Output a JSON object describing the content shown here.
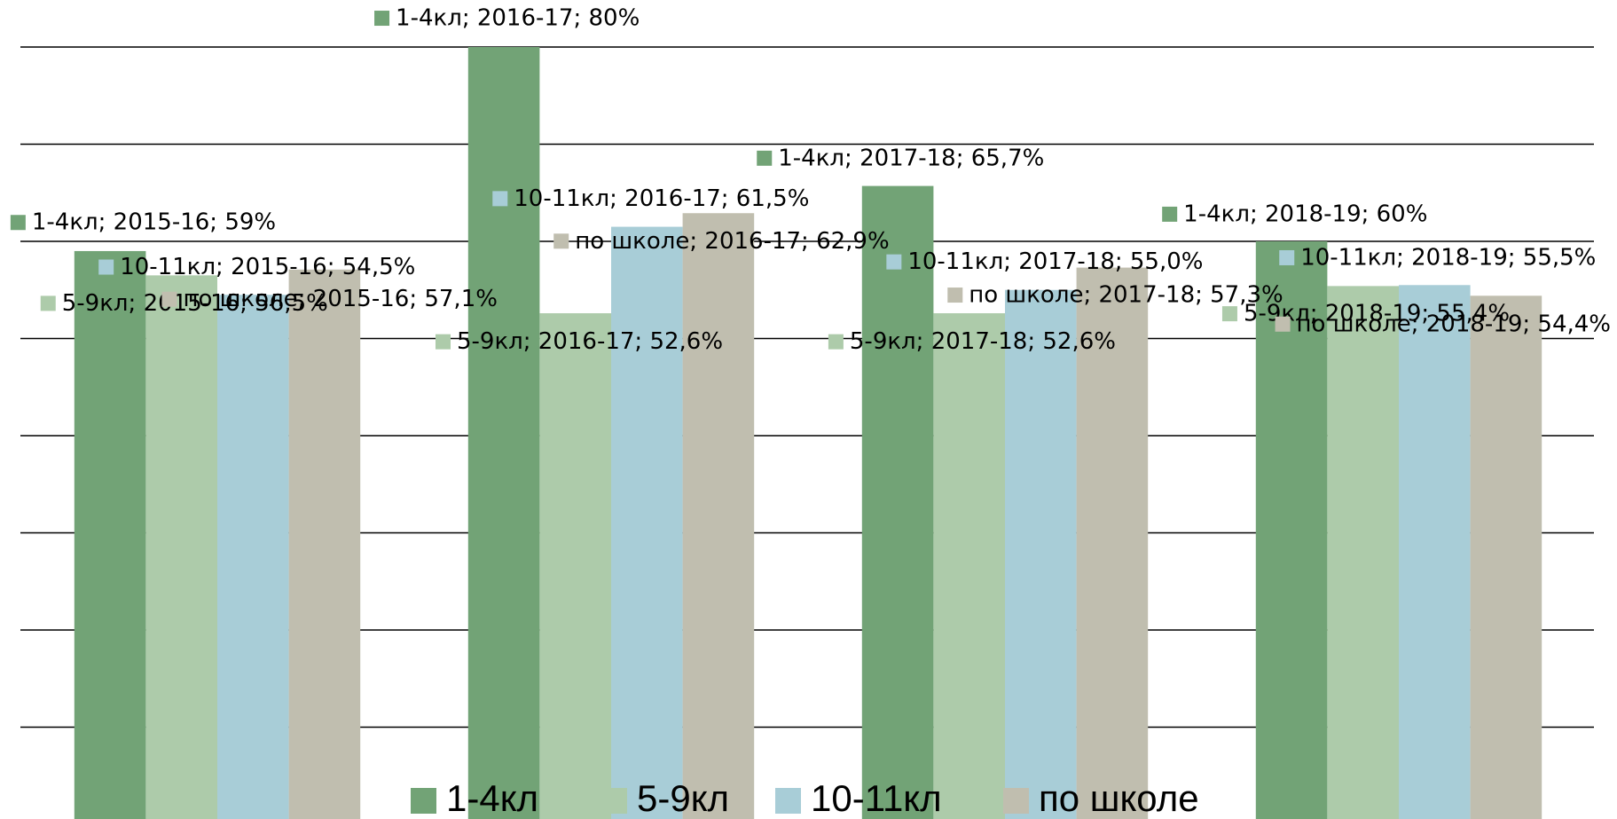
{
  "chart_data": {
    "type": "bar",
    "categories": [
      "2015-16",
      "2016-17",
      "2017-18",
      "2018-19"
    ],
    "series": [
      {
        "name": "1-4кл",
        "color": "#72a376",
        "values": [
          59,
          80,
          65.7,
          60
        ],
        "value_labels": [
          "1-4кл; 2015-16; 59%",
          "1-4кл; 2016-17; 80%",
          "1-4кл; 2017-18; 65,7%",
          "1-4кл; 2018-19; 60%"
        ]
      },
      {
        "name": "5-9кл",
        "color": "#adcbaa",
        "values": [
          56.5,
          52.6,
          52.6,
          55.4
        ],
        "value_labels": [
          "5-9кл; 2015-16; 56,5%",
          "5-9кл; 2016-17; 52,6%",
          "5-9кл; 2017-18; 52,6%",
          "5-9кл; 2018-19; 55,4%"
        ]
      },
      {
        "name": "10-11кл",
        "color": "#a8cdd7",
        "values": [
          54.5,
          61.5,
          55.0,
          55.5
        ],
        "value_labels": [
          "10-11кл; 2015-16; 54,5%",
          "10-11кл; 2016-17; 61,5%",
          "10-11кл; 2017-18; 55,0%",
          "10-11кл; 2018-19; 55,5%"
        ]
      },
      {
        "name": "по школе",
        "color": "#c0beaf",
        "values": [
          57.1,
          62.9,
          57.3,
          54.4
        ],
        "value_labels": [
          "по школе; 2015-16; 57,1%",
          "по школе; 2016-17; 62,9%",
          "по школе; 2017-18; 57,3%",
          "по школе; 2018-19; 54,4%"
        ]
      }
    ],
    "ylim": [
      0,
      85
    ],
    "yticks": [
      10,
      20,
      30,
      40,
      50,
      60,
      70,
      80
    ],
    "grid": true,
    "legend": "bottom"
  }
}
